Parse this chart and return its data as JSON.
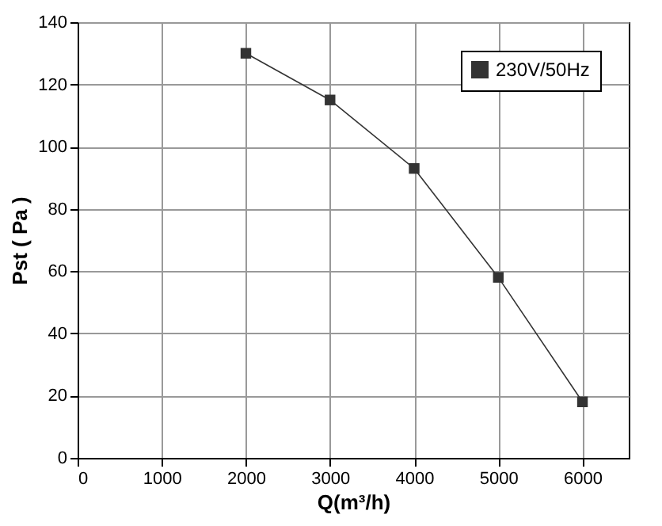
{
  "chart_data": {
    "type": "line",
    "xlabel": "Q(m³/h)",
    "ylabel": "Pst ( Pa )",
    "x": [
      2000,
      3000,
      4000,
      5000,
      6000
    ],
    "series": [
      {
        "name": "230V/50Hz",
        "color": "#333333",
        "values": [
          130,
          115,
          93,
          58,
          18
        ]
      }
    ],
    "xlim": [
      0,
      6550
    ],
    "xticks": [
      0,
      1000,
      2000,
      3000,
      4000,
      5000,
      6000
    ],
    "ylim": [
      0,
      140
    ],
    "yticks": [
      0,
      20,
      40,
      60,
      80,
      100,
      120,
      140
    ],
    "grid": true,
    "legend": "top right",
    "marker": "square",
    "line_style": "solid"
  }
}
